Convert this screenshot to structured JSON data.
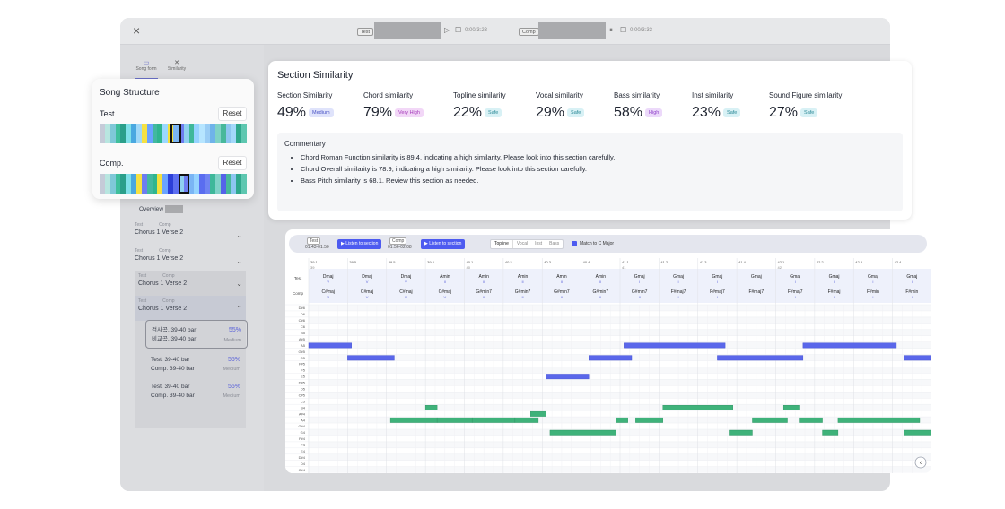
{
  "window": {
    "close_icon": "×"
  },
  "topbar": {
    "test_tag": "Test",
    "test_time": "0:00/3:23",
    "comp_tag": "Comp",
    "comp_time": "0:00/3:33",
    "play_glyph": "▷",
    "stop_glyph": "☐",
    "pause_glyph": "⏸"
  },
  "sidebar": {
    "tabs": [
      {
        "label": "Song form",
        "icon": "song-form-icon"
      },
      {
        "label": "Similarity",
        "icon": "similarity-icon"
      }
    ],
    "overview": "Overview",
    "rows": [
      {
        "test_hdr": "Test",
        "comp_hdr": "Comp",
        "test": "Chorus 1",
        "comp": "Verse 2"
      },
      {
        "test_hdr": "Test",
        "comp_hdr": "Comp",
        "test": "Chorus 1",
        "comp": "Verse 2"
      },
      {
        "test_hdr": "Test",
        "comp_hdr": "Comp",
        "test": "Chorus 1",
        "comp": "Verse 2"
      },
      {
        "test_hdr": "Test",
        "comp_hdr": "Comp",
        "test": "Chorus 1",
        "comp": "Verse 2"
      }
    ],
    "bar_items": [
      {
        "l1": "검사곡. 39-40 bar",
        "l2": "비교곡. 39-40 bar",
        "pct": "55%",
        "level": "Medium"
      },
      {
        "l1": "Test. 39-40 bar",
        "l2": "Comp. 39-40 bar",
        "pct": "55%",
        "level": "Medium"
      },
      {
        "l1": "Test. 39-40 bar",
        "l2": "Comp. 39-40 bar",
        "pct": "55%",
        "level": "Medium"
      }
    ]
  },
  "song_structure": {
    "title": "Song Structure",
    "test_label": "Test.",
    "comp_label": "Comp.",
    "reset_label": "Reset",
    "test_strip": [
      "#c5cbd8",
      "#b8e6e0",
      "#7fc8d8",
      "#3fbf9c",
      "#2a9f8a",
      "#7ee0e8",
      "#4aa8e0",
      "#9fd8f8",
      "#f5e142",
      "#6aa3ff",
      "#42b8a0",
      "#2fb58f",
      "#9ad8ff",
      "#f3e03e",
      "#7ab5f5",
      "#6d7df0",
      "#8fd0f0",
      "#3fb89a",
      "#95d3ff",
      "#b6e5ff",
      "#9acdf5",
      "#6fb3ea",
      "#7fd2c6",
      "#47b89b",
      "#8dc6f0",
      "#a3d8fa",
      "#2fa88c",
      "#5ec7b0"
    ],
    "comp_strip": [
      "#c5cbd8",
      "#b8e6e0",
      "#7fc8d8",
      "#3fbf9c",
      "#2a9f8a",
      "#7ee0e8",
      "#4aa8e0",
      "#f5e142",
      "#6d7df0",
      "#42b8a0",
      "#2fb58f",
      "#f3e03e",
      "#6aa3ff",
      "#2c3fd8",
      "#5c6ef0",
      "#8fd0f0",
      "#6d7df0",
      "#7ab5f5",
      "#95d3ff",
      "#5a6df0",
      "#6f83f2",
      "#3fb89a",
      "#7fd2c6",
      "#5563e8",
      "#47b89b",
      "#8dc6f0",
      "#2fa88c",
      "#5ec7b0"
    ]
  },
  "section_similarity": {
    "title": "Section Similarity",
    "metrics": [
      {
        "name": "Section Similarity",
        "value": "49%",
        "badge": "Medium",
        "kind": "med"
      },
      {
        "name": "Chord similarity",
        "value": "79%",
        "badge": "Very High",
        "kind": "vh"
      },
      {
        "name": "Topline similarity",
        "value": "22%",
        "badge": "Safe",
        "kind": "safe"
      },
      {
        "name": "Vocal similarity",
        "value": "29%",
        "badge": "Safe",
        "kind": "safe"
      },
      {
        "name": "Bass similarity",
        "value": "58%",
        "badge": "High",
        "kind": "high"
      },
      {
        "name": "Inst similarity",
        "value": "23%",
        "badge": "Safe",
        "kind": "safe"
      },
      {
        "name": "Sound Figure similarity",
        "value": "27%",
        "badge": "Safe",
        "kind": "safe"
      }
    ],
    "commentary_title": "Commentary",
    "commentary": [
      "Chord Roman Function similarity is 89.4, indicating a high similarity. Please look into this section carefully.",
      "Chord Overall similarity is 78.9, indicating a high similarity. Please look into this section carefully.",
      "Bass Pitch similarity is 68.1. Review this section as needed."
    ]
  },
  "piano": {
    "test_tag": "Test",
    "test_range": "01:43-01:50",
    "comp_tag": "Comp",
    "comp_range": "01:56-02:08",
    "listen_label": "▶ Listen to section",
    "tabs": [
      "Topline",
      "Vocal",
      "Inst",
      "Bass"
    ],
    "match_label": "Match to C Major",
    "test_row_label": "Test",
    "comp_row_label": "Comp",
    "top_bars": [
      "39.1",
      "39.5",
      "39.5",
      "39.4",
      "40.1",
      "40.2",
      "40.3",
      "40.4",
      "41.1",
      "41.2",
      "41.3",
      "41.4",
      "42.1",
      "42.2",
      "42.3",
      "42.4"
    ],
    "sub_bars": [
      "39",
      "",
      "",
      "",
      "40",
      "",
      "",
      "",
      "41",
      "",
      "",
      "",
      "42",
      "",
      "",
      ""
    ],
    "test_chords": [
      "Dmaj",
      "Dmaj",
      "Dmaj",
      "Amin",
      "Amin",
      "Amin",
      "Amin",
      "Amin",
      "Gmaj",
      "Gmaj",
      "Gmaj",
      "Gmaj",
      "Gmaj",
      "Gmaj",
      "Gmaj",
      "Gmaj"
    ],
    "test_roman": [
      "V",
      "V",
      "V",
      "II",
      "II",
      "II",
      "II",
      "II",
      "I",
      "I",
      "I",
      "I",
      "I",
      "I",
      "I",
      "I"
    ],
    "comp_chords": [
      "C#maj",
      "C#maj",
      "C#maj",
      "C#maj",
      "G#min7",
      "G#min7",
      "G#min7",
      "G#min7",
      "G#min7",
      "F#maj7",
      "F#maj7",
      "F#maj7",
      "F#maj7",
      "F#maj",
      "F#min",
      "F#min"
    ],
    "comp_roman": [
      "V",
      "V",
      "V",
      "V",
      "II",
      "II",
      "II",
      "II",
      "II",
      "I",
      "I",
      "I",
      "I",
      "I",
      "I",
      "I"
    ],
    "pitches": [
      "D#6",
      "D6",
      "C#6",
      "C6",
      "B5",
      "A#5",
      "A5",
      "G#5",
      "G5",
      "F#5",
      "F5",
      "E5",
      "D#5",
      "D5",
      "C#5",
      "C5",
      "B4",
      "A#4",
      "A4",
      "G#4",
      "G4",
      "F#4",
      "F4",
      "E4",
      "D#4",
      "D4",
      "C#4"
    ],
    "blue_notes": [
      [
        0,
        0,
        1.1
      ],
      [
        1,
        1,
        2.2
      ],
      [
        7,
        6.1,
        7.2
      ],
      [
        8,
        2,
        3.1
      ],
      [
        8,
        3.1,
        5.6
      ],
      [
        8,
        5.6,
        5.75
      ],
      [
        9,
        3.4,
        4.5
      ],
      [
        10,
        6.3,
        7.5
      ],
      [
        11,
        3.7,
        5.1
      ],
      [
        12,
        0.6,
        2.2
      ],
      [
        13,
        1.9,
        3.2
      ],
      [
        14,
        4.9,
        6.0
      ],
      [
        15,
        6.3,
        7.3
      ],
      [
        16,
        8.2,
        9.1
      ]
    ],
    "green_notes": [
      [
        0,
        0,
        0.4
      ],
      [
        1,
        0.4,
        1.0
      ],
      [
        2,
        1.0,
        1.7
      ],
      [
        3,
        1.7,
        3.0
      ],
      [
        4,
        3.0,
        4.2
      ],
      [
        5,
        4.2,
        5.3
      ],
      [
        6,
        5.3,
        6.5
      ],
      [
        7,
        6.5,
        7.8
      ],
      [
        8,
        7.8,
        8.6
      ],
      [
        9,
        8.6,
        9.3
      ],
      [
        10,
        9.3,
        10.3
      ],
      [
        11,
        10.3,
        11.0
      ],
      [
        12,
        11.0,
        12.0
      ],
      [
        13,
        12.0,
        13.0
      ],
      [
        14,
        13.0,
        14.0
      ],
      [
        15,
        14.0,
        15.3
      ]
    ],
    "scroll_glyph": "‹"
  }
}
